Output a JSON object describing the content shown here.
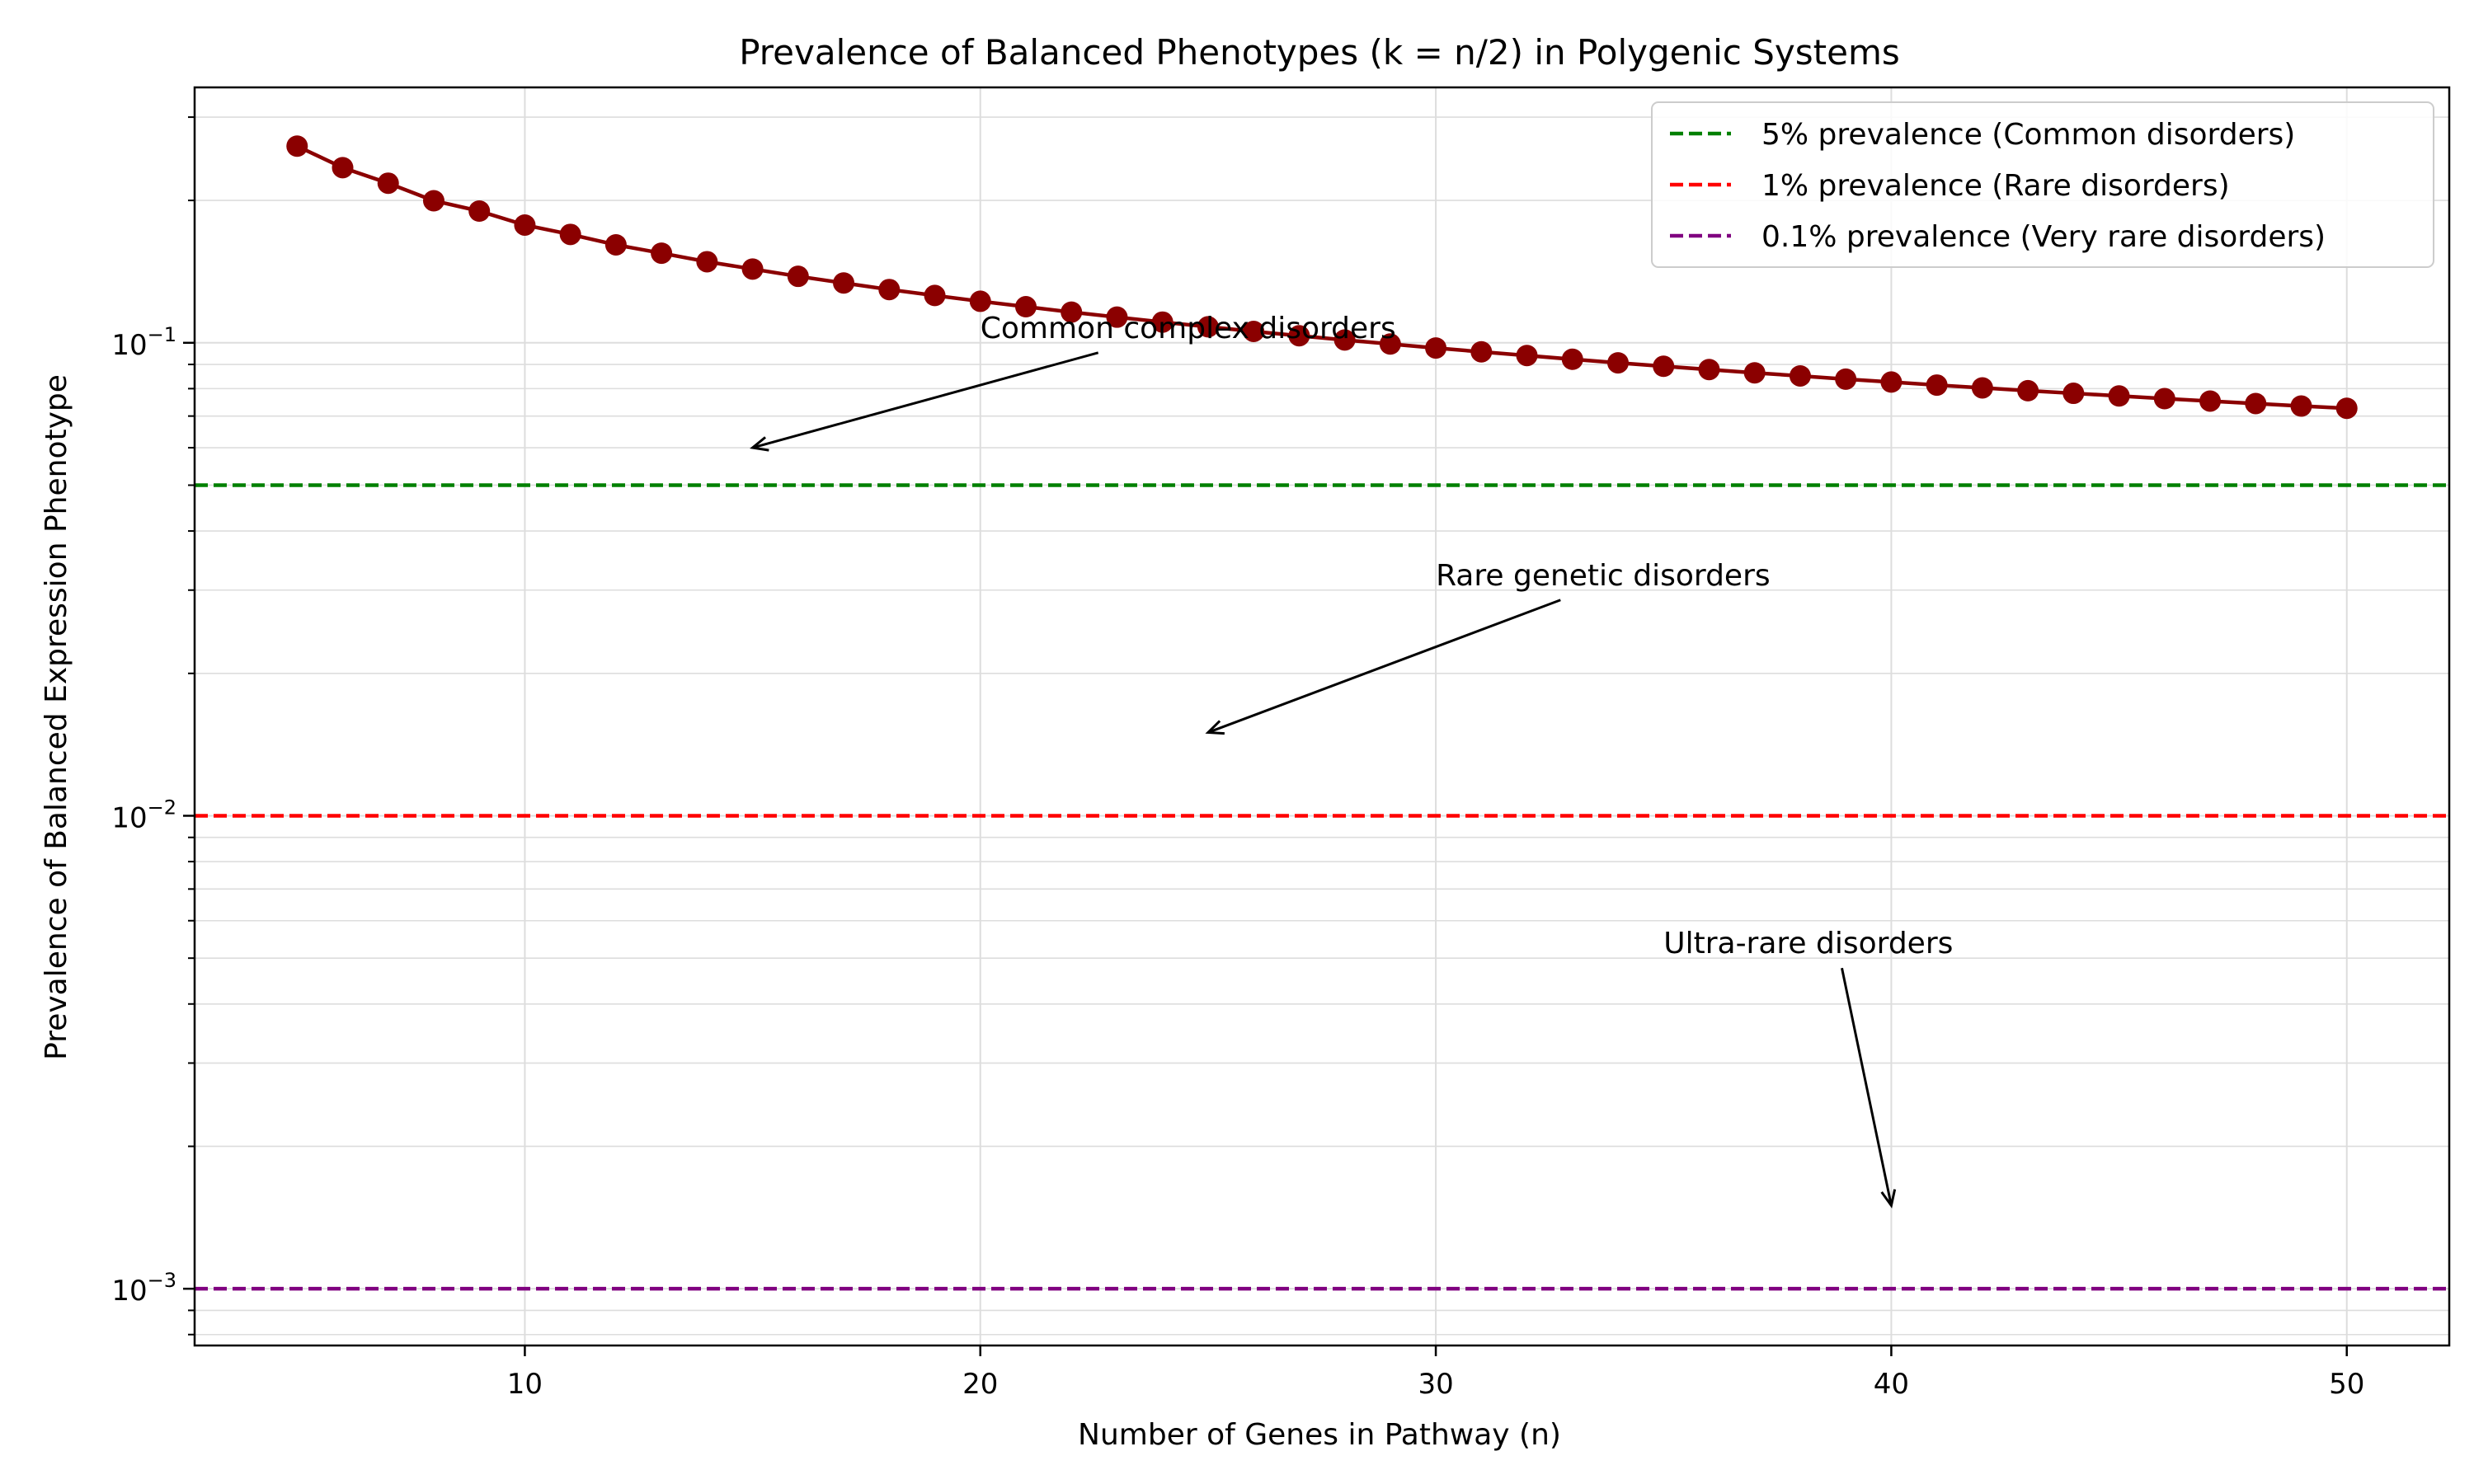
{
  "chart_data": {
    "type": "line",
    "title": "Prevalence of Balanced Phenotypes (k = n/2) in Polygenic Systems",
    "xlabel": "Number of Genes in Pathway (n)",
    "ylabel": "Prevalence of Balanced Expression Phenotype",
    "xlim": [
      2.75,
      52.25
    ],
    "ylim_log10": [
      -3.12,
      -0.46
    ],
    "yscale": "log",
    "grid": true,
    "x_ticks": [
      10,
      20,
      30,
      40,
      50
    ],
    "x_tick_labels": [
      "10",
      "20",
      "30",
      "40",
      "50"
    ],
    "y_ticks": [
      0.001,
      0.01,
      0.1
    ],
    "y_tick_labels": [
      {
        "base": "10",
        "exp": "−3"
      },
      {
        "base": "10",
        "exp": "−2"
      },
      {
        "base": "10",
        "exp": "−1"
      }
    ],
    "series": [
      {
        "name": "Balanced phenotype prevalence",
        "color": "#8b0000",
        "x": [
          5,
          6,
          7,
          8,
          9,
          10,
          11,
          12,
          13,
          14,
          15,
          16,
          17,
          18,
          19,
          20,
          21,
          22,
          23,
          24,
          25,
          26,
          27,
          28,
          29,
          30,
          31,
          32,
          33,
          34,
          35,
          36,
          37,
          38,
          39,
          40,
          41,
          42,
          43,
          44,
          45,
          46,
          47,
          48,
          49,
          50
        ],
        "y": [
          0.2605,
          0.2346,
          0.2175,
          0.1997,
          0.1899,
          0.1774,
          0.1695,
          0.1611,
          0.1547,
          0.1484,
          0.1432,
          0.1382,
          0.1338,
          0.1296,
          0.1259,
          0.1224,
          0.1192,
          0.1161,
          0.1133,
          0.1106,
          0.1081,
          0.1057,
          0.1035,
          0.1014,
          0.0994,
          0.0975,
          0.0957,
          0.094,
          0.0923,
          0.0907,
          0.0892,
          0.0878,
          0.0864,
          0.0851,
          0.0838,
          0.0826,
          0.0814,
          0.0803,
          0.0792,
          0.0782,
          0.0772,
          0.0762,
          0.0753,
          0.0744,
          0.0735,
          0.0727
        ]
      }
    ],
    "reference_lines": [
      {
        "y": 0.05,
        "color": "#008000",
        "label": "5% prevalence (Common disorders)"
      },
      {
        "y": 0.01,
        "color": "#ff0000",
        "label": "1% prevalence (Rare disorders)"
      },
      {
        "y": 0.001,
        "color": "#800080",
        "label": "0.1% prevalence (Very rare disorders)"
      }
    ],
    "annotations": [
      {
        "text": "Common complex disorders",
        "text_xy": [
          20,
          0.1
        ],
        "arrow_to": [
          15,
          0.06
        ]
      },
      {
        "text": "Rare genetic disorders",
        "text_xy": [
          30,
          0.03
        ],
        "arrow_to": [
          25,
          0.015
        ]
      },
      {
        "text": "Ultra-rare disorders",
        "text_xy": [
          35,
          0.005
        ],
        "arrow_to": [
          40,
          0.0015
        ]
      }
    ],
    "legend_position": "top-right"
  }
}
